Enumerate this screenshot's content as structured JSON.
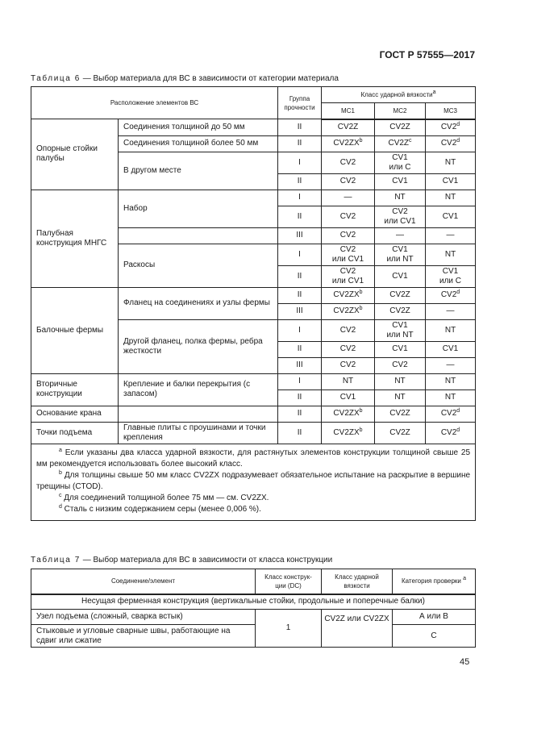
{
  "header": {
    "doc_code": "ГОСТ Р 57555—2017"
  },
  "table6": {
    "caption_label": "Таблица 6",
    "caption_text": " — Выбор материала для ВС в зависимости от категории материала",
    "headers": {
      "location": "Расположение элементов ВС",
      "grade": "Группа прочности",
      "class": "Класс ударной вязкости",
      "class_sup": "a",
      "mc1": "MC1",
      "mc2": "MC2",
      "mc3": "MC3"
    },
    "groups": [
      {
        "location": "Опорные стойки палубы",
        "subgroups": [
          {
            "element": "Соединения толщиной до 50 мм",
            "rows": [
              {
                "g": "II",
                "v": [
                  {
                    "t": "CV2Z"
                  },
                  {
                    "t": "CV2Z"
                  },
                  {
                    "t": "CV2",
                    "sup": "d"
                  }
                ]
              }
            ]
          },
          {
            "element": "Соединения толщиной более 50 мм",
            "rows": [
              {
                "g": "II",
                "v": [
                  {
                    "t": "CV2ZX",
                    "sup": "b"
                  },
                  {
                    "t": "CV2Z",
                    "sup": "c"
                  },
                  {
                    "t": "CV2",
                    "sup": "d"
                  }
                ]
              }
            ]
          },
          {
            "element": "В другом месте",
            "rows": [
              {
                "g": "I",
                "v": [
                  {
                    "t": "CV2"
                  },
                  {
                    "t": "CV1\nили C"
                  },
                  {
                    "t": "NT"
                  }
                ]
              },
              {
                "g": "II",
                "v": [
                  {
                    "t": "CV2"
                  },
                  {
                    "t": "CV1"
                  },
                  {
                    "t": "CV1"
                  }
                ]
              }
            ]
          }
        ]
      },
      {
        "location": "Палубная конструкция МНГС",
        "subgroups": [
          {
            "element": "Набор",
            "rows": [
              {
                "g": "I",
                "v": [
                  {
                    "t": "—"
                  },
                  {
                    "t": "NT"
                  },
                  {
                    "t": "NT"
                  }
                ]
              },
              {
                "g": "II",
                "v": [
                  {
                    "t": "CV2"
                  },
                  {
                    "t": "CV2\nили CV1"
                  },
                  {
                    "t": "CV1"
                  }
                ]
              }
            ]
          },
          {
            "element": "",
            "rows": [
              {
                "g": "III",
                "v": [
                  {
                    "t": "CV2"
                  },
                  {
                    "t": "—"
                  },
                  {
                    "t": "—"
                  }
                ]
              }
            ]
          },
          {
            "element": "Раскосы",
            "rows": [
              {
                "g": "I",
                "v": [
                  {
                    "t": "CV2\nили CV1"
                  },
                  {
                    "t": "CV1\nили NT"
                  },
                  {
                    "t": "NT"
                  }
                ]
              },
              {
                "g": "II",
                "v": [
                  {
                    "t": "CV2\nили CV1"
                  },
                  {
                    "t": "CV1"
                  },
                  {
                    "t": "CV1\nили C"
                  }
                ]
              }
            ]
          }
        ]
      },
      {
        "location": "Балочные фермы",
        "subgroups": [
          {
            "element": "Фланец на соединениях и узлы фермы",
            "rows": [
              {
                "g": "II",
                "v": [
                  {
                    "t": "CV2ZX",
                    "sup": "b"
                  },
                  {
                    "t": "CV2Z"
                  },
                  {
                    "t": "CV2",
                    "sup": "d"
                  }
                ]
              },
              {
                "g": "III",
                "v": [
                  {
                    "t": "CV2ZX",
                    "sup": "b"
                  },
                  {
                    "t": "CV2Z"
                  },
                  {
                    "t": "—"
                  }
                ]
              }
            ]
          },
          {
            "element": "Другой фланец, полка фермы, ребра жесткости",
            "rows": [
              {
                "g": "I",
                "v": [
                  {
                    "t": "CV2"
                  },
                  {
                    "t": "CV1\nили NT"
                  },
                  {
                    "t": "NT"
                  }
                ]
              },
              {
                "g": "II",
                "v": [
                  {
                    "t": "CV2"
                  },
                  {
                    "t": "CV1"
                  },
                  {
                    "t": "CV1"
                  }
                ]
              },
              {
                "g": "III",
                "v": [
                  {
                    "t": "CV2"
                  },
                  {
                    "t": "CV2"
                  },
                  {
                    "t": "—"
                  }
                ]
              }
            ]
          }
        ]
      },
      {
        "location": "Вторичные конструкции",
        "subgroups": [
          {
            "element": "Крепление и балки перекрытия (с запасом)",
            "rows": [
              {
                "g": "I",
                "v": [
                  {
                    "t": "NT"
                  },
                  {
                    "t": "NT"
                  },
                  {
                    "t": "NT"
                  }
                ]
              },
              {
                "g": "II",
                "v": [
                  {
                    "t": "CV1"
                  },
                  {
                    "t": "NT"
                  },
                  {
                    "t": "NT"
                  }
                ]
              }
            ]
          }
        ]
      },
      {
        "location": "Основание крана",
        "subgroups": [
          {
            "element": "",
            "rows": [
              {
                "g": "II",
                "v": [
                  {
                    "t": "CV2ZX",
                    "sup": "b"
                  },
                  {
                    "t": "CV2Z"
                  },
                  {
                    "t": "CV2",
                    "sup": "d"
                  }
                ]
              }
            ]
          }
        ]
      },
      {
        "location": "Точки подъема",
        "subgroups": [
          {
            "element": "Главные плиты с проушинами и точки крепления",
            "rows": [
              {
                "g": "II",
                "v": [
                  {
                    "t": "CV2ZX",
                    "sup": "b"
                  },
                  {
                    "t": "CV2Z"
                  },
                  {
                    "t": "CV2",
                    "sup": "d"
                  }
                ]
              }
            ]
          }
        ]
      }
    ],
    "notes": [
      {
        "sup": "a",
        "text": " Если указаны два класса ударной вязкости, для растянутых элементов конструкции толщиной свыше 25 мм рекомендуется использовать более высокий класс."
      },
      {
        "sup": "b",
        "text": " Для толщины свыше 50 мм класс CV2ZX подразумевает обязательное испытание на раскрытие в вершине трещины (CTOD)."
      },
      {
        "sup": "c",
        "text": " Для соединений толщиной более 75 мм — см. CV2ZX."
      },
      {
        "sup": "d",
        "text": " Сталь с низким содержанием серы (менее 0,006 %)."
      }
    ]
  },
  "table7": {
    "caption_label": "Таблица 7",
    "caption_text": " — Выбор материала для ВС в зависимости от класса конструкции",
    "headers": {
      "element": "Соединение/элемент",
      "dc": "Класс конструк-ции (DC)",
      "toughness": "Класс ударной вязкости",
      "category": "Категория проверки",
      "category_sup": "a"
    },
    "section": "Несущая ферменная конструкция (вертикальные стойки, продольные и поперечные балки)",
    "rows": [
      {
        "element": "Узел подъема (сложный, сварка встык)",
        "category": "А или В"
      },
      {
        "element": "Стыковые и угловые сварные швы, работающие на сдвиг или сжатие",
        "category": "С"
      }
    ],
    "dc": "1",
    "toughness": "CV2Z или CV2ZX"
  },
  "footer": {
    "page_number": "45"
  }
}
